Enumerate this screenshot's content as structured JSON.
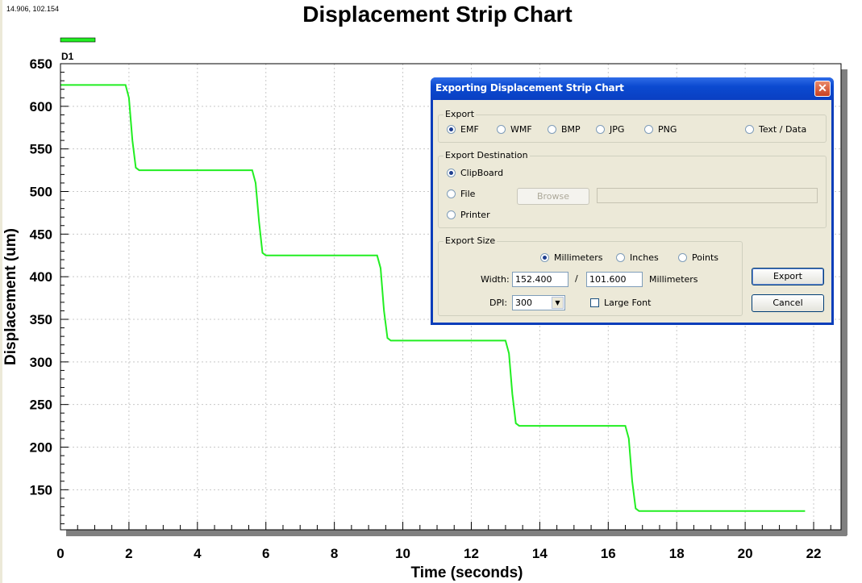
{
  "readout": "14.906, 102.154",
  "chart_data": {
    "type": "line",
    "title": "Displacement Strip Chart",
    "xlabel": "Time (seconds)",
    "ylabel": "Displacement (um)",
    "xlim": [
      0,
      22.8
    ],
    "ylim": [
      103,
      650
    ],
    "xticks": [
      0,
      2,
      4,
      6,
      8,
      10,
      12,
      14,
      16,
      18,
      20,
      22
    ],
    "yticks": [
      150,
      200,
      250,
      300,
      350,
      400,
      450,
      500,
      550,
      600,
      650
    ],
    "grid": true,
    "legend": "top-left",
    "series": [
      {
        "name": "D1",
        "color": "#22ee22",
        "points": [
          [
            0.0,
            625
          ],
          [
            1.9,
            625
          ],
          [
            2.0,
            610
          ],
          [
            2.1,
            560
          ],
          [
            2.2,
            528
          ],
          [
            2.3,
            525
          ],
          [
            5.6,
            525
          ],
          [
            5.7,
            510
          ],
          [
            5.8,
            465
          ],
          [
            5.9,
            428
          ],
          [
            6.0,
            425
          ],
          [
            9.25,
            425
          ],
          [
            9.35,
            410
          ],
          [
            9.45,
            360
          ],
          [
            9.55,
            328
          ],
          [
            9.65,
            325
          ],
          [
            13.0,
            325
          ],
          [
            13.1,
            310
          ],
          [
            13.2,
            262
          ],
          [
            13.3,
            228
          ],
          [
            13.4,
            225
          ],
          [
            16.5,
            225
          ],
          [
            16.6,
            210
          ],
          [
            16.7,
            160
          ],
          [
            16.8,
            128
          ],
          [
            16.9,
            125
          ],
          [
            21.75,
            125
          ]
        ]
      }
    ]
  },
  "dialog": {
    "title": "Exporting Displacement Strip Chart",
    "close_label": "✕",
    "export_group": "Export",
    "formats": [
      {
        "label": "EMF",
        "selected": true
      },
      {
        "label": "WMF",
        "selected": false
      },
      {
        "label": "BMP",
        "selected": false
      },
      {
        "label": "JPG",
        "selected": false
      },
      {
        "label": "PNG",
        "selected": false
      },
      {
        "label": "Text / Data",
        "selected": false
      }
    ],
    "destination_group": "Export Destination",
    "destinations": [
      {
        "label": "ClipBoard",
        "selected": true
      },
      {
        "label": "File",
        "selected": false
      },
      {
        "label": "Printer",
        "selected": false
      }
    ],
    "browse_label": "Browse",
    "file_path": "",
    "size_group": "Export Size",
    "units": [
      {
        "label": "Millimeters",
        "selected": true
      },
      {
        "label": "Inches",
        "selected": false
      },
      {
        "label": "Points",
        "selected": false
      }
    ],
    "width_label": "Width:",
    "width_value": "152.400",
    "separator": "/",
    "height_value": "101.600",
    "height_unit": "Millimeters",
    "dpi_label": "DPI:",
    "dpi_value": "300",
    "large_font_label": "Large Font",
    "large_font_checked": false,
    "export_button": "Export",
    "cancel_button": "Cancel"
  }
}
